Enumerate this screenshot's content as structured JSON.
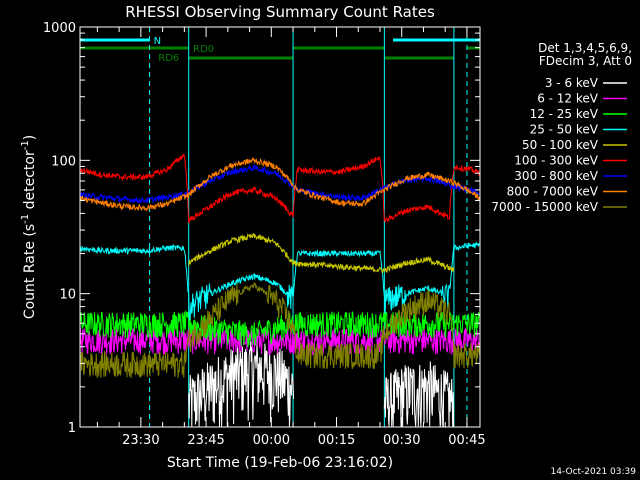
{
  "chart_data": {
    "type": "line",
    "title": "RHESSI Observing Summary Count Rates",
    "xlabel": "Start Time (19-Feb-06 23:16:02)",
    "ylabel_main": "Count Rate (s",
    "ylabel_sup1": "-1",
    "ylabel_mid": " detector",
    "ylabel_sup2": "-1",
    "ylabel_end": ")",
    "yscale": "log",
    "ylim": [
      1,
      1000
    ],
    "xlim_minutes": [
      0,
      92
    ],
    "y_ticks": [
      {
        "value": 1,
        "label": "1"
      },
      {
        "value": 10,
        "label": "10"
      },
      {
        "value": 100,
        "label": "100"
      },
      {
        "value": 1000,
        "label": "1000"
      }
    ],
    "x_ticks": [
      {
        "minute": 14,
        "label": "23:30"
      },
      {
        "minute": 29,
        "label": "23:45"
      },
      {
        "minute": 44,
        "label": "00:00"
      },
      {
        "minute": 59,
        "label": "00:15"
      },
      {
        "minute": 74,
        "label": "00:30"
      },
      {
        "minute": 89,
        "label": "00:45"
      }
    ],
    "legend_header": [
      "Det 1,3,4,5,6,9,",
      "FDecim 3, Att 0"
    ],
    "timestamp": "14-Oct-2021 03:39",
    "flags": [
      {
        "label": "N",
        "color": "#00ffff",
        "segments": [
          [
            0,
            16
          ],
          [
            72,
            92
          ]
        ]
      },
      {
        "label": "RD0",
        "color": "#008000",
        "segments": [
          [
            0,
            25
          ],
          [
            49,
            70
          ],
          [
            89,
            92
          ]
        ]
      },
      {
        "label": "RD6",
        "color": "#008000",
        "segments": [
          [
            25,
            49
          ],
          [
            70,
            86
          ]
        ]
      }
    ],
    "saa_boundaries_minutes": [
      16,
      89
    ],
    "night_boundaries_minutes": [
      25,
      49,
      70,
      86
    ],
    "series": [
      {
        "name": "3 - 6 keV",
        "color": "#ffffff",
        "x": [
          25,
          30,
          35,
          40,
          45,
          49,
          70,
          75,
          80,
          86
        ],
        "y": [
          1.5,
          2.0,
          2.5,
          2.8,
          2.6,
          2.0,
          1.5,
          1.9,
          2.0,
          1.5
        ]
      },
      {
        "name": "6 - 12 keV",
        "color": "#ff00ff",
        "x": [
          0,
          10,
          20,
          25,
          30,
          40,
          49,
          60,
          70,
          80,
          86,
          92
        ],
        "y": [
          4.5,
          4.5,
          4.5,
          4.5,
          4.5,
          4.5,
          4.5,
          4.5,
          4.5,
          4.5,
          4.5,
          4.5
        ]
      },
      {
        "name": "12 - 25 keV",
        "color": "#00ff00",
        "x": [
          0,
          10,
          20,
          25,
          30,
          40,
          49,
          60,
          70,
          80,
          86,
          92
        ],
        "y": [
          6,
          6,
          6,
          6,
          5.5,
          5,
          6,
          6,
          6,
          6,
          6,
          6
        ]
      },
      {
        "name": "25 - 50 keV",
        "color": "#00ffff",
        "x": [
          0,
          5,
          10,
          15,
          20,
          24,
          25,
          30,
          35,
          40,
          45,
          49,
          50,
          55,
          60,
          65,
          69,
          70,
          75,
          80,
          85,
          86,
          90,
          92
        ],
        "y": [
          22,
          21,
          21,
          21,
          22,
          22,
          8,
          10,
          12,
          13.5,
          12,
          9,
          20,
          20,
          20,
          20,
          20,
          9,
          10,
          11,
          9.5,
          22,
          23,
          23
        ]
      },
      {
        "name": "50 - 100 keV",
        "color": "#c8c800",
        "x": [
          25,
          30,
          35,
          40,
          45,
          49,
          70,
          75,
          80,
          86
        ],
        "y": [
          17,
          21,
          25,
          27,
          24,
          17,
          15,
          17,
          18,
          15
        ]
      },
      {
        "name": "100 - 300 keV",
        "color": "#ff0000",
        "x": [
          0,
          5,
          10,
          15,
          20,
          24,
          25,
          30,
          35,
          40,
          45,
          49,
          50,
          55,
          60,
          65,
          69,
          70,
          75,
          80,
          85,
          86,
          90,
          92
        ],
        "y": [
          85,
          78,
          75,
          75,
          85,
          110,
          35,
          45,
          57,
          60,
          52,
          38,
          85,
          82,
          82,
          90,
          105,
          35,
          42,
          45,
          37,
          90,
          85,
          80
        ]
      },
      {
        "name": "300 - 800 keV",
        "color": "#0000ff",
        "x": [
          0,
          5,
          10,
          15,
          20,
          25,
          30,
          35,
          40,
          45,
          50,
          55,
          60,
          65,
          70,
          75,
          80,
          86,
          92
        ],
        "y": [
          55,
          53,
          51,
          50,
          53,
          57,
          70,
          82,
          88,
          80,
          60,
          56,
          53,
          52,
          62,
          71,
          73,
          64,
          57
        ]
      },
      {
        "name": "800 - 7000 keV",
        "color": "#ff8000",
        "x": [
          0,
          5,
          10,
          15,
          20,
          25,
          30,
          35,
          40,
          45,
          50,
          55,
          60,
          65,
          70,
          75,
          80,
          86,
          92
        ],
        "y": [
          52,
          48,
          45,
          44,
          47,
          55,
          75,
          92,
          100,
          90,
          60,
          53,
          48,
          47,
          60,
          73,
          78,
          68,
          52
        ]
      },
      {
        "name": "7000 - 15000 keV",
        "color": "#808000",
        "x": [
          0,
          5,
          10,
          15,
          20,
          24,
          25,
          30,
          35,
          40,
          45,
          49,
          50,
          55,
          60,
          65,
          69,
          70,
          75,
          80,
          85,
          86,
          90,
          92
        ],
        "y": [
          3,
          3,
          3,
          3,
          3,
          3,
          4.5,
          6.5,
          9.5,
          11.5,
          9,
          5.5,
          3.5,
          3.5,
          3.5,
          3.5,
          3.5,
          5,
          7.5,
          9,
          7,
          3.5,
          3.5,
          3.5
        ]
      }
    ]
  }
}
